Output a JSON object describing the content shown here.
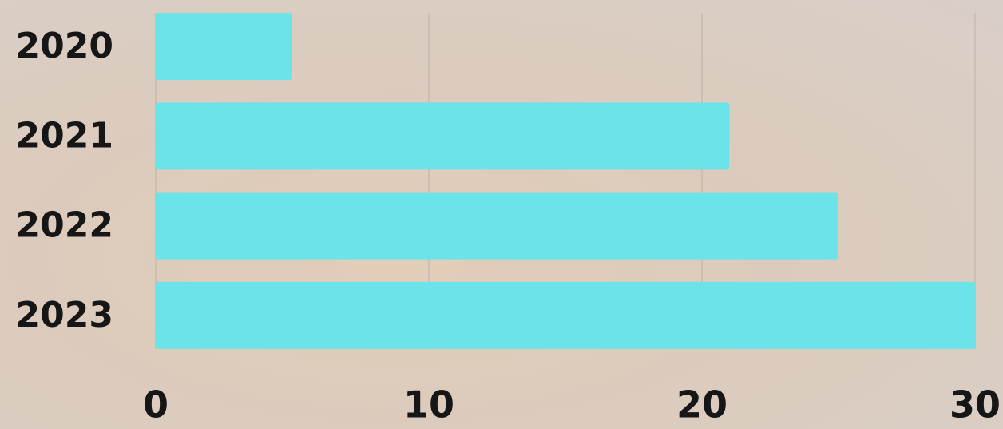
{
  "chart_data": {
    "type": "bar",
    "orientation": "horizontal",
    "categories": [
      "2020",
      "2021",
      "2022",
      "2023"
    ],
    "values": [
      5,
      21,
      25,
      30
    ],
    "color": "#6ae4e9",
    "xlim": [
      0,
      30
    ],
    "xticks": [
      0,
      10,
      20,
      30
    ],
    "grid": true
  }
}
